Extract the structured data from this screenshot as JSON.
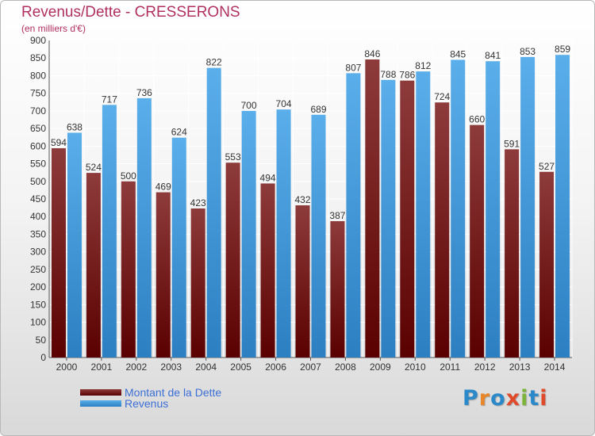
{
  "header": {
    "title": "Revenus/Dette - CRESSERONS",
    "subtitle": "(en milliers d'€)"
  },
  "legend": {
    "debt_label": "Montant de la Dette",
    "revenue_label": "Revenus"
  },
  "logo": {
    "text": "Proxiti",
    "letter_colors": [
      "#2b88c9",
      "#e8862a",
      "#2b88c9",
      "#e04a2a",
      "#7bb33b",
      "#2b88c9",
      "#e04a2a"
    ]
  },
  "colors": {
    "debt_top": "#8e3b3b",
    "debt_bottom": "#5a0000",
    "revenue_top": "#5aaeea",
    "revenue_bottom": "#2c7fc1",
    "tick_label": "#333333",
    "value_label": "#333333"
  },
  "chart_data": {
    "type": "bar",
    "title": "Revenus/Dette - CRESSERONS",
    "ylabel": "(en milliers d'€)",
    "categories": [
      "2000",
      "2001",
      "2002",
      "2003",
      "2004",
      "2005",
      "2006",
      "2007",
      "2008",
      "2009",
      "2010",
      "2011",
      "2012",
      "2013",
      "2014"
    ],
    "series": [
      {
        "name": "Montant de la Dette",
        "values": [
          594,
          524,
          500,
          469,
          423,
          553,
          494,
          432,
          387,
          846,
          786,
          724,
          660,
          591,
          527
        ]
      },
      {
        "name": "Revenus",
        "values": [
          638,
          717,
          736,
          624,
          822,
          700,
          704,
          689,
          807,
          788,
          812,
          845,
          841,
          853,
          859
        ]
      }
    ],
    "ylim": [
      0,
      900
    ],
    "yticks": [
      0,
      50,
      100,
      150,
      200,
      250,
      300,
      350,
      400,
      450,
      500,
      550,
      600,
      650,
      700,
      750,
      800,
      850,
      900
    ],
    "grid": true,
    "legend_position": "bottom-left"
  }
}
